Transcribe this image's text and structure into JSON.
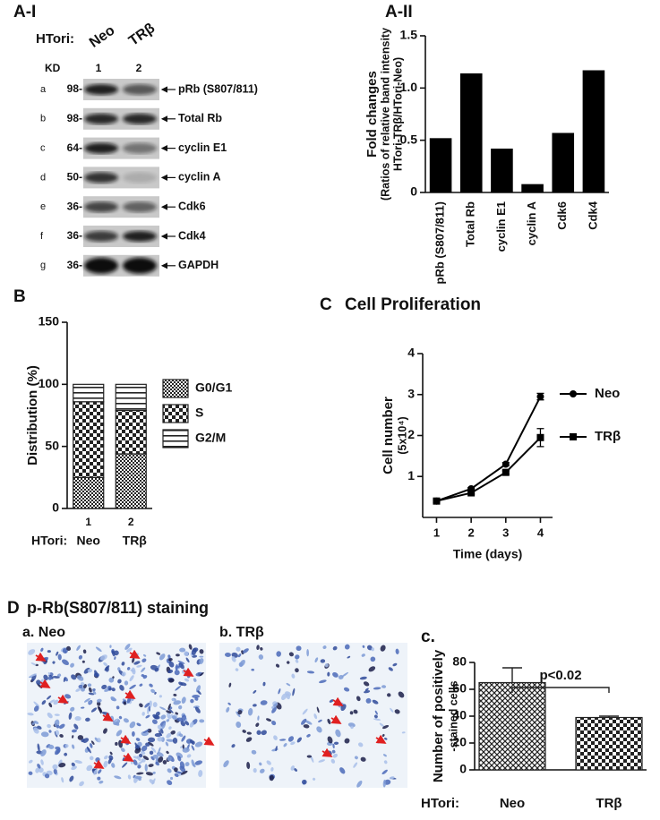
{
  "panel_a1": {
    "label": "A-I",
    "htori": "HTori:",
    "lanes": [
      "Neo",
      "TRβ"
    ],
    "kd": "KD",
    "lane_numbers": [
      "1",
      "2"
    ],
    "rows": [
      {
        "letter": "a",
        "marker": "98-",
        "protein": "pRb (S807/811)"
      },
      {
        "letter": "b",
        "marker": "98-",
        "protein": "Total Rb"
      },
      {
        "letter": "c",
        "marker": "64-",
        "protein": "cyclin E1"
      },
      {
        "letter": "d",
        "marker": "50-",
        "protein": "cyclin A"
      },
      {
        "letter": "e",
        "marker": "36-",
        "protein": "Cdk6"
      },
      {
        "letter": "f",
        "marker": "36-",
        "protein": "Cdk4"
      },
      {
        "letter": "g",
        "marker": "36-",
        "protein": "GAPDH"
      }
    ]
  },
  "panel_d": {
    "label": "D",
    "title": "p-Rb(S807/811) staining",
    "images": [
      "a. Neo",
      "b. TRβ"
    ]
  },
  "chart_data": [
    {
      "type": "bar",
      "label": "A-II",
      "ylabel": [
        "Fold changes",
        "(Ratios of relative band intensity",
        "HTori-TRβ/HTori-Neo)"
      ],
      "categories": [
        "pRb (S807/811)",
        "Total Rb",
        "cyclin E1",
        "cyclin A",
        "Cdk6",
        "Cdk4"
      ],
      "values": [
        0.52,
        1.14,
        0.42,
        0.08,
        0.57,
        1.17
      ],
      "color": "#000000",
      "ylim": [
        0,
        1.5
      ],
      "yticks": [
        0,
        0.5,
        {
          "value": 1,
          "label": "1.0"
        },
        1.5
      ]
    },
    {
      "type": "stacked_bar",
      "label": "B",
      "ylabel": "Distribution (%)",
      "categories": [
        "1",
        "2"
      ],
      "group_label": "HTori:",
      "groups": [
        "Neo",
        "TRβ"
      ],
      "series": [
        {
          "name": "G0/G1",
          "pattern": "dots",
          "values": [
            25,
            44
          ]
        },
        {
          "name": "S",
          "pattern": "checker",
          "values": [
            61,
            35
          ]
        },
        {
          "name": "G2/M",
          "pattern": "hlines",
          "values": [
            14,
            21
          ]
        }
      ],
      "ylim": [
        0,
        150
      ],
      "yticks": [
        0,
        50,
        100,
        150
      ]
    },
    {
      "type": "line",
      "label": "C",
      "title": "Cell Proliferation",
      "xlabel": "Time (days)",
      "ylabel": [
        "Cell number",
        "(5x10⁴)"
      ],
      "x": [
        1,
        2,
        3,
        4
      ],
      "series": [
        {
          "name": "Neo",
          "marker": "circle",
          "color": "#000000",
          "values": [
            0.4,
            0.7,
            1.3,
            2.95
          ],
          "errors": [
            0.03,
            0.03,
            0.04,
            0.08
          ]
        },
        {
          "name": "TRβ",
          "marker": "square",
          "color": "#000000",
          "values": [
            0.4,
            0.6,
            1.1,
            1.95
          ],
          "errors": [
            0.03,
            0.03,
            0.04,
            0.22
          ]
        }
      ],
      "xlim": [
        0.6,
        4.35
      ],
      "ylim": [
        0,
        4
      ],
      "xticks": [
        1,
        2,
        3,
        4
      ],
      "yticks": [
        1,
        2,
        3,
        4
      ]
    },
    {
      "type": "bar_error",
      "label": "c.",
      "ylabel": [
        "Number of positively",
        "-stained cells"
      ],
      "categories": [
        "Neo",
        "TRβ"
      ],
      "category_label": "HTori:",
      "values": [
        65,
        39
      ],
      "errors": [
        11,
        1
      ],
      "patterns": [
        "crosshatch",
        "checker"
      ],
      "annotation": "p<0.02",
      "ylim": [
        0,
        80
      ],
      "yticks": [
        0,
        20,
        40,
        60,
        80
      ]
    }
  ]
}
